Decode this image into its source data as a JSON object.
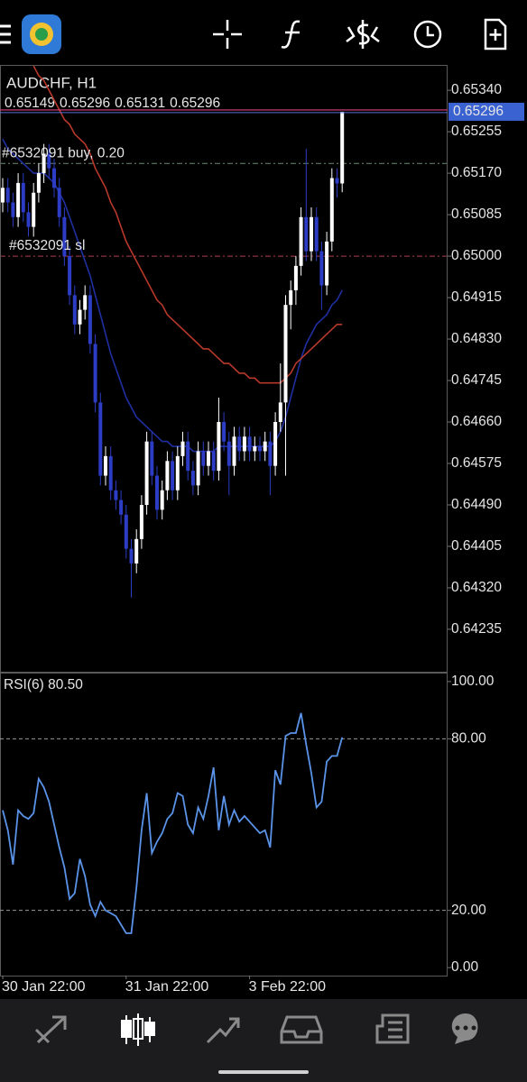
{
  "chart_data": [
    {
      "type": "candlestick",
      "title": "AUDCHF, H1",
      "up_color": "#ffffff",
      "down_color": "#2c3cc4",
      "open": [
        0.6511,
        0.6514,
        0.6511,
        0.6508,
        0.6515,
        0.6509,
        0.6506,
        0.6513,
        0.6517,
        0.6521,
        0.6518,
        0.6514,
        0.6508,
        0.65,
        0.6492,
        0.6486,
        0.6489,
        0.6492,
        0.6482,
        0.647,
        0.6455,
        0.6459,
        0.6452,
        0.645,
        0.6447,
        0.644,
        0.6437,
        0.6442,
        0.6449,
        0.6462,
        0.6455,
        0.6448,
        0.6452,
        0.6458,
        0.6452,
        0.6459,
        0.6462,
        0.6456,
        0.6453,
        0.646,
        0.6457,
        0.646,
        0.6456,
        0.6466,
        0.6462,
        0.6457,
        0.6463,
        0.646,
        0.6463,
        0.646,
        0.6461,
        0.646,
        0.6462,
        0.6457,
        0.6466,
        0.647,
        0.649,
        0.6493,
        0.6498,
        0.6508,
        0.6501,
        0.6508,
        0.6501,
        0.6494,
        0.6503,
        0.6516,
        0.65149
      ],
      "high": [
        0.6516,
        0.6516,
        0.6513,
        0.6517,
        0.6517,
        0.6511,
        0.6515,
        0.6519,
        0.6523,
        0.6523,
        0.652,
        0.6516,
        0.651,
        0.6502,
        0.6494,
        0.6491,
        0.6494,
        0.6494,
        0.6484,
        0.6472,
        0.6461,
        0.6461,
        0.6454,
        0.6452,
        0.6449,
        0.6442,
        0.6444,
        0.6451,
        0.6464,
        0.6464,
        0.6457,
        0.6454,
        0.646,
        0.646,
        0.6461,
        0.6464,
        0.6464,
        0.6458,
        0.6462,
        0.6462,
        0.6462,
        0.6462,
        0.6471,
        0.6468,
        0.6464,
        0.6465,
        0.6465,
        0.6465,
        0.6465,
        0.6463,
        0.6463,
        0.6464,
        0.6464,
        0.6468,
        0.6478,
        0.6492,
        0.6495,
        0.65,
        0.651,
        0.6522,
        0.651,
        0.651,
        0.6503,
        0.6505,
        0.6518,
        0.6518,
        0.65296
      ],
      "low": [
        0.6509,
        0.6509,
        0.6506,
        0.6506,
        0.6507,
        0.6504,
        0.6504,
        0.6511,
        0.6515,
        0.6516,
        0.6512,
        0.6506,
        0.6498,
        0.649,
        0.6484,
        0.6484,
        0.6487,
        0.648,
        0.6468,
        0.6453,
        0.6453,
        0.645,
        0.6448,
        0.6445,
        0.6438,
        0.643,
        0.6435,
        0.644,
        0.6447,
        0.6453,
        0.6446,
        0.6446,
        0.645,
        0.645,
        0.645,
        0.6457,
        0.6454,
        0.6451,
        0.6451,
        0.6455,
        0.6455,
        0.6454,
        0.6454,
        0.646,
        0.6451,
        0.6455,
        0.6458,
        0.6458,
        0.6458,
        0.6458,
        0.6458,
        0.6458,
        0.6451,
        0.6455,
        0.6464,
        0.6455,
        0.6485,
        0.649,
        0.6496,
        0.6499,
        0.6499,
        0.6499,
        0.6489,
        0.6492,
        0.6501,
        0.6512,
        0.65131
      ],
      "close": [
        0.6514,
        0.6511,
        0.6508,
        0.6515,
        0.6509,
        0.6506,
        0.6513,
        0.6517,
        0.6521,
        0.6518,
        0.6514,
        0.6508,
        0.65,
        0.6492,
        0.6486,
        0.6489,
        0.6492,
        0.6482,
        0.647,
        0.6455,
        0.6459,
        0.6452,
        0.645,
        0.6447,
        0.644,
        0.6437,
        0.6442,
        0.6449,
        0.6462,
        0.6455,
        0.6448,
        0.6452,
        0.6458,
        0.6452,
        0.6459,
        0.6462,
        0.6456,
        0.6453,
        0.646,
        0.6457,
        0.646,
        0.6456,
        0.6466,
        0.6462,
        0.6457,
        0.6463,
        0.646,
        0.6463,
        0.646,
        0.6461,
        0.646,
        0.6462,
        0.6457,
        0.6466,
        0.647,
        0.649,
        0.6493,
        0.6498,
        0.6508,
        0.6501,
        0.6508,
        0.6501,
        0.6494,
        0.6503,
        0.6516,
        0.65149,
        0.65296
      ],
      "moving_averages": [
        {
          "color": "#1f2fa0",
          "values": [
            0.6524,
            0.6522,
            0.6521,
            0.652,
            0.6519,
            0.6518,
            0.6517,
            0.6517,
            0.6517,
            0.6516,
            0.6515,
            0.6513,
            0.6511,
            0.6508,
            0.6505,
            0.6502,
            0.6499,
            0.6496,
            0.6492,
            0.6488,
            0.6484,
            0.648,
            0.6477,
            0.6474,
            0.6471,
            0.6469,
            0.6467,
            0.6466,
            0.6465,
            0.6464,
            0.6463,
            0.6462,
            0.6462,
            0.6461,
            0.6461,
            0.6461,
            0.6461,
            0.646,
            0.646,
            0.646,
            0.646,
            0.646,
            0.6461,
            0.6461,
            0.6461,
            0.6461,
            0.6461,
            0.6461,
            0.6461,
            0.6461,
            0.6461,
            0.6461,
            0.6461,
            0.6462,
            0.6464,
            0.6467,
            0.6471,
            0.6475,
            0.6479,
            0.6482,
            0.6484,
            0.6486,
            0.6487,
            0.6488,
            0.649,
            0.6491,
            0.6493
          ]
        },
        {
          "color": "#b8382a",
          "values": [
            null,
            null,
            null,
            null,
            null,
            null,
            0.6539,
            0.6537,
            0.6536,
            0.6534,
            0.6532,
            0.653,
            0.6528,
            0.6527,
            0.6525,
            0.6524,
            0.6523,
            0.6521,
            0.6518,
            0.6516,
            0.6514,
            0.6511,
            0.6509,
            0.6506,
            0.6503,
            0.6501,
            0.6499,
            0.6497,
            0.6495,
            0.6493,
            0.6491,
            0.649,
            0.6488,
            0.6487,
            0.6486,
            0.6485,
            0.6484,
            0.6483,
            0.6482,
            0.6481,
            0.6481,
            0.648,
            0.6479,
            0.6478,
            0.6478,
            0.6477,
            0.6476,
            0.6476,
            0.6475,
            0.6475,
            0.6474,
            0.6474,
            0.6474,
            0.6474,
            0.6474,
            0.6475,
            0.6476,
            0.6478,
            0.6479,
            0.648,
            0.6481,
            0.6482,
            0.6483,
            0.6484,
            0.6485,
            0.6486,
            0.6486
          ]
        }
      ],
      "order_lines": [
        {
          "label": "#6532091 buy, 0.20",
          "value": 0.6519,
          "color": "#6f8a6f"
        },
        {
          "label": "#6532091 sl",
          "value": 0.65,
          "color": "#b04050"
        }
      ],
      "price_line_color": "#e0407a",
      "ylim": [
        0.64148,
        0.65392
      ],
      "yticks": [
        {
          "value": 0.6534,
          "label": "0.65340"
        },
        {
          "value": 0.65255,
          "label": "0.65255"
        },
        {
          "value": 0.6517,
          "label": "0.65170"
        },
        {
          "value": 0.65085,
          "label": "0.65085"
        },
        {
          "value": 0.65,
          "label": "0.65000"
        },
        {
          "value": 0.64915,
          "label": "0.64915"
        },
        {
          "value": 0.6483,
          "label": "0.64830"
        },
        {
          "value": 0.64745,
          "label": "0.64745"
        },
        {
          "value": 0.6466,
          "label": "0.64660"
        },
        {
          "value": 0.64575,
          "label": "0.64575"
        },
        {
          "value": 0.6449,
          "label": "0.64490"
        },
        {
          "value": 0.64405,
          "label": "0.64405"
        },
        {
          "value": 0.6432,
          "label": "0.64320"
        },
        {
          "value": 0.64235,
          "label": "0.64235"
        }
      ],
      "xticks": [
        {
          "value": 0,
          "label": "30 Jan 22:00"
        },
        {
          "value": 24,
          "label": "31 Jan 22:00"
        },
        {
          "value": 48,
          "label": "3 Feb 22:00"
        }
      ]
    },
    {
      "type": "line",
      "title": "RSI(6) 80.50",
      "color": "#5b93e8",
      "values": [
        55,
        48,
        36,
        55,
        53,
        52,
        54,
        66,
        63,
        58,
        50,
        42,
        35,
        24,
        26,
        38,
        32,
        22,
        18,
        23,
        20,
        19,
        18,
        15,
        12,
        12,
        28,
        48,
        61,
        40,
        44,
        47,
        52,
        54,
        61,
        60,
        50,
        47,
        56,
        52,
        60,
        70,
        48,
        60,
        50,
        55,
        51,
        53,
        51,
        49,
        47,
        48,
        42,
        69,
        64,
        81,
        82,
        82,
        89,
        78,
        68,
        56,
        58,
        72,
        74,
        74,
        80.5
      ],
      "level_lines": [
        20,
        80
      ],
      "ylim": [
        -2.8,
        102.8
      ],
      "yticks": [
        {
          "value": 0,
          "label": "0.00"
        },
        {
          "value": 20,
          "label": "20.00"
        },
        {
          "value": 80,
          "label": "80.00"
        },
        {
          "value": 100,
          "label": "100.00"
        }
      ]
    }
  ]
}
